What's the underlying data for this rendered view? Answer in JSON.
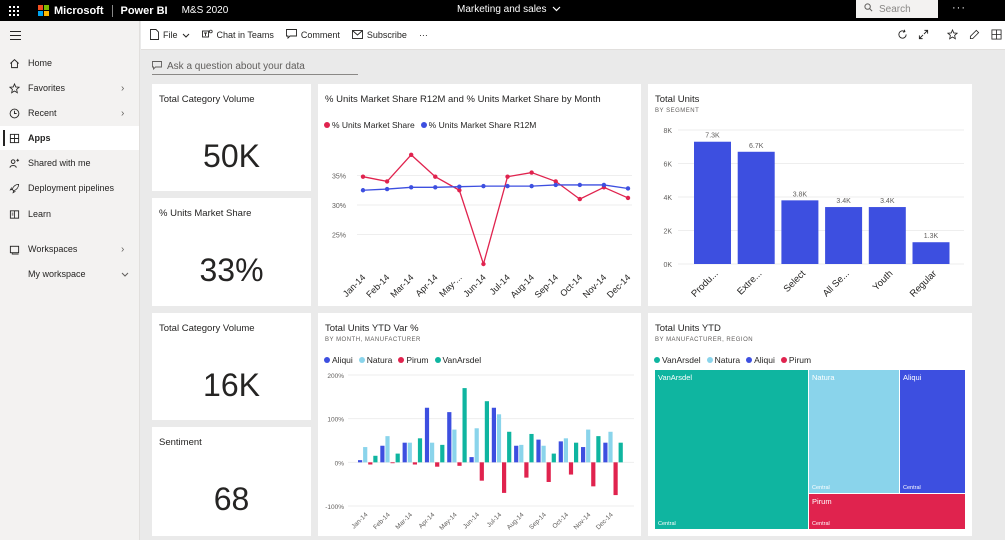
{
  "topbar": {
    "brand": "Microsoft",
    "app": "Power BI",
    "workspace": "M&S 2020",
    "report_title": "Marketing and sales",
    "search_placeholder": "Search",
    "more": "···"
  },
  "sidebar": {
    "items": [
      {
        "label": "Home",
        "icon": "home-icon"
      },
      {
        "label": "Favorites",
        "icon": "star-icon"
      },
      {
        "label": "Recent",
        "icon": "clock-icon"
      },
      {
        "label": "Apps",
        "icon": "apps-icon"
      },
      {
        "label": "Shared with me",
        "icon": "shared-icon"
      },
      {
        "label": "Deployment pipelines",
        "icon": "rocket-icon"
      },
      {
        "label": "Learn",
        "icon": "book-icon"
      },
      {
        "label": "Workspaces",
        "icon": "workspaces-icon"
      },
      {
        "label": "My workspace",
        "icon": ""
      }
    ]
  },
  "cmdbar": {
    "file": "File",
    "teams": "Chat in Teams",
    "comment": "Comment",
    "subscribe": "Subscribe",
    "more": "···"
  },
  "qna": {
    "placeholder": "Ask a question about your data"
  },
  "tiles": {
    "kpi1": {
      "title": "Total Category Volume",
      "value": "50K"
    },
    "kpi2": {
      "title": "% Units Market Share",
      "value": "33%"
    },
    "kpi3": {
      "title": "Total Category Volume",
      "value": "16K"
    },
    "kpi4": {
      "title": "Sentiment",
      "value": "68"
    },
    "line": {
      "title": "% Units Market Share R12M and % Units Market Share by Month"
    },
    "bar": {
      "title": "Total Units",
      "subtitle": "BY SEGMENT"
    },
    "ytd": {
      "title": "Total Units YTD Var %",
      "subtitle": "BY MONTH, MANUFACTURER"
    },
    "tree": {
      "title": "Total Units YTD",
      "subtitle": "BY MANUFACTURER, REGION"
    }
  },
  "colors": {
    "red": "#e0234e",
    "blue": "#3d4fe0",
    "teal": "#0fb5a0",
    "lightblue": "#8ad4eb",
    "pirum": "#e0234e",
    "vanarsdel": "#0fb5a0"
  },
  "chart_data": [
    {
      "type": "line",
      "title": "% Units Market Share R12M and % Units Market Share by Month",
      "categories": [
        "Jan-14",
        "Feb-14",
        "Mar-14",
        "Apr-14",
        "May-...",
        "Jun-14",
        "Jul-14",
        "Aug-14",
        "Sep-14",
        "Oct-14",
        "Nov-14",
        "Dec-14"
      ],
      "series": [
        {
          "name": "% Units Market Share",
          "color": "#e0234e",
          "values": [
            34.8,
            34.0,
            38.5,
            34.8,
            32.5,
            20.0,
            34.8,
            35.5,
            34.0,
            31.0,
            33.0,
            31.2
          ]
        },
        {
          "name": "% Units Market Share R12M",
          "color": "#3d4fe0",
          "values": [
            32.5,
            32.7,
            33.0,
            33.0,
            33.1,
            33.2,
            33.2,
            33.2,
            33.4,
            33.4,
            33.4,
            32.8
          ]
        }
      ],
      "yticks": [
        "35%",
        "30%",
        "25%"
      ],
      "ytick_values": [
        35,
        30,
        25
      ],
      "ylim": [
        20,
        40
      ]
    },
    {
      "type": "bar",
      "title": "Total Units",
      "subtitle": "BY SEGMENT",
      "categories": [
        "Produ...",
        "Extre...",
        "Select",
        "All Se...",
        "Youth",
        "Regular"
      ],
      "values": [
        7300,
        6700,
        3800,
        3400,
        3400,
        1300
      ],
      "labels": [
        "7.3K",
        "6.7K",
        "3.8K",
        "3.4K",
        "3.4K",
        "1.3K"
      ],
      "yticks": [
        "8K",
        "6K",
        "4K",
        "2K",
        "0K"
      ],
      "ytick_values": [
        8000,
        6000,
        4000,
        2000,
        0
      ],
      "ylim": [
        0,
        8000
      ],
      "color": "#3d4fe0"
    },
    {
      "type": "bar",
      "title": "Total Units YTD Var %",
      "subtitle": "BY MONTH, MANUFACTURER",
      "categories": [
        "Jan-14",
        "Feb-14",
        "Mar-14",
        "Apr-14",
        "May-14",
        "Jun-14",
        "Jul-14",
        "Aug-14",
        "Sep-14",
        "Oct-14",
        "Nov-14",
        "Dec-14"
      ],
      "series": [
        {
          "name": "Aliqui",
          "color": "#3d4fe0",
          "values": [
            5,
            38,
            45,
            125,
            115,
            12,
            125,
            38,
            52,
            48,
            35,
            45
          ]
        },
        {
          "name": "Natura",
          "color": "#8ad4eb",
          "values": [
            35,
            60,
            45,
            45,
            75,
            78,
            110,
            40,
            38,
            55,
            75,
            70
          ]
        },
        {
          "name": "Pirum",
          "color": "#e0234e",
          "values": [
            -5,
            -2,
            -5,
            -10,
            -8,
            -42,
            -70,
            -35,
            -45,
            -28,
            -55,
            -75
          ]
        },
        {
          "name": "VanArsdel",
          "color": "#0fb5a0",
          "values": [
            15,
            20,
            55,
            40,
            170,
            140,
            70,
            65,
            20,
            45,
            60,
            45
          ]
        }
      ],
      "yticks": [
        "200%",
        "100%",
        "0%",
        "-100%"
      ],
      "ytick_values": [
        200,
        100,
        0,
        -100
      ],
      "ylim": [
        -100,
        200
      ]
    },
    {
      "type": "treemap",
      "title": "Total Units YTD",
      "subtitle": "BY MANUFACTURER, REGION",
      "legend": [
        "VanArsdel",
        "Natura",
        "Aliqui",
        "Pirum"
      ],
      "nodes": [
        {
          "name": "VanArsdel",
          "region": "Central",
          "color": "#0fb5a0"
        },
        {
          "name": "Natura",
          "region": "Central",
          "color": "#8ad4eb"
        },
        {
          "name": "Aliqui",
          "region": "Central",
          "color": "#3d4fe0"
        },
        {
          "name": "Pirum",
          "region": "Central",
          "color": "#e0234e"
        }
      ]
    }
  ]
}
